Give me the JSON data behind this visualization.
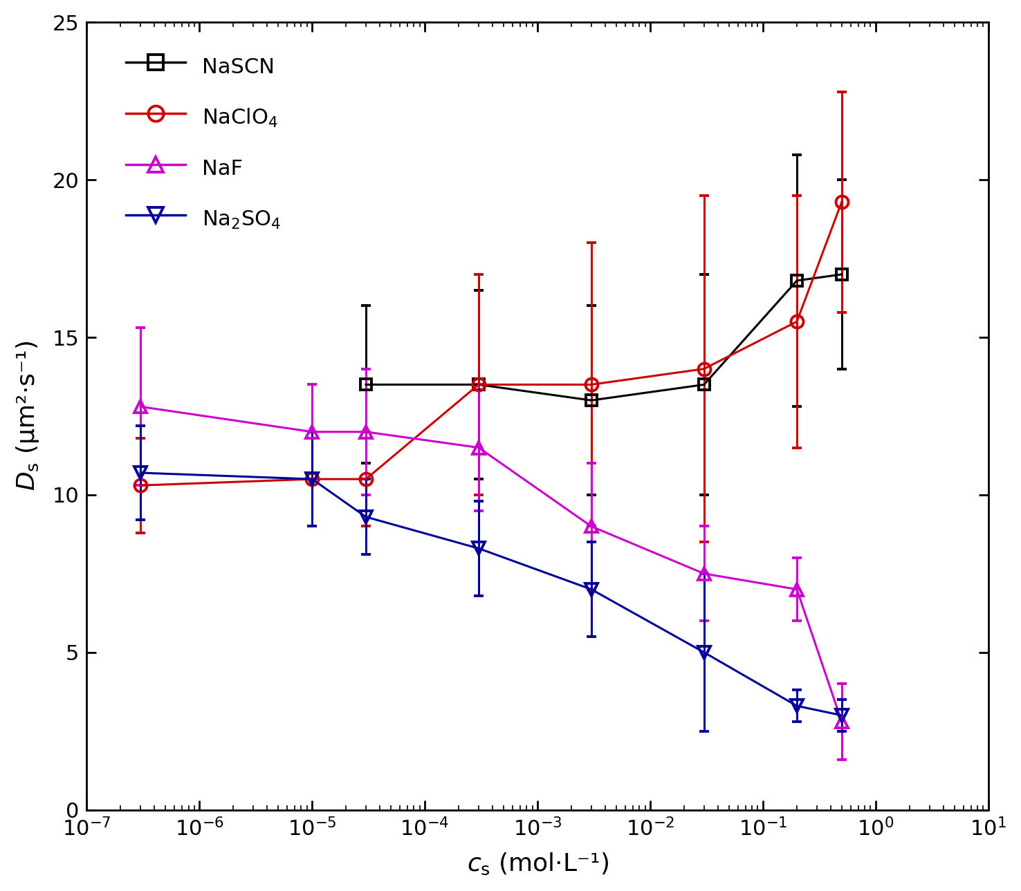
{
  "xlabel": "$c_{\\mathrm{s}}$ (mol·L⁻¹)",
  "ylabel": "$D_{\\mathrm{s}}$ (μm²·s⁻¹)",
  "xlim": [
    1e-07,
    10
  ],
  "ylim": [
    0,
    25
  ],
  "yticks": [
    0,
    5,
    10,
    15,
    20,
    25
  ],
  "series": [
    {
      "label": "NaSCN",
      "color": "#000000",
      "marker": "s",
      "markersize": 11,
      "x": [
        3e-05,
        0.0003,
        0.003,
        0.03,
        0.2,
        0.5
      ],
      "y": [
        13.5,
        13.5,
        13.0,
        13.5,
        16.8,
        17.0
      ],
      "yerr_lo": [
        2.5,
        3.0,
        3.0,
        3.5,
        4.0,
        3.0
      ],
      "yerr_hi": [
        2.5,
        3.0,
        3.0,
        3.5,
        4.0,
        3.0
      ]
    },
    {
      "label": "NaClO$_4$",
      "color": "#cc0000",
      "marker": "o",
      "markersize": 13,
      "x": [
        3e-07,
        1e-05,
        3e-05,
        0.0003,
        0.003,
        0.03,
        0.2,
        0.5
      ],
      "y": [
        10.3,
        10.5,
        10.5,
        13.5,
        13.5,
        14.0,
        15.5,
        19.3
      ],
      "yerr_lo": [
        1.5,
        1.5,
        1.5,
        3.5,
        4.5,
        5.5,
        4.0,
        3.5
      ],
      "yerr_hi": [
        1.5,
        1.5,
        1.5,
        3.5,
        4.5,
        5.5,
        4.0,
        3.5
      ]
    },
    {
      "label": "NaF",
      "color": "#cc00cc",
      "marker": "^",
      "markersize": 13,
      "x": [
        3e-07,
        1e-05,
        3e-05,
        0.0003,
        0.003,
        0.03,
        0.2,
        0.5
      ],
      "y": [
        12.8,
        12.0,
        12.0,
        11.5,
        9.0,
        7.5,
        7.0,
        2.8
      ],
      "yerr_lo": [
        2.5,
        1.5,
        2.0,
        2.0,
        2.0,
        1.5,
        1.0,
        1.2
      ],
      "yerr_hi": [
        2.5,
        1.5,
        2.0,
        2.0,
        2.0,
        1.5,
        1.0,
        1.2
      ]
    },
    {
      "label": "Na$_2$SO$_4$",
      "color": "#000099",
      "marker": "v",
      "markersize": 13,
      "x": [
        3e-07,
        1e-05,
        3e-05,
        0.0003,
        0.003,
        0.03,
        0.2,
        0.5
      ],
      "y": [
        10.7,
        10.5,
        9.3,
        8.3,
        7.0,
        5.0,
        3.3,
        3.0
      ],
      "yerr_lo": [
        1.5,
        1.5,
        1.2,
        1.5,
        1.5,
        2.5,
        0.5,
        0.5
      ],
      "yerr_hi": [
        1.5,
        1.5,
        1.2,
        1.5,
        1.5,
        2.5,
        0.5,
        0.5
      ]
    }
  ],
  "background_color": "#ffffff",
  "linewidth": 2.2,
  "capsize": 5,
  "elinewidth": 2.2,
  "figsize": [
    14.76,
    12.89
  ],
  "dpi": 100
}
